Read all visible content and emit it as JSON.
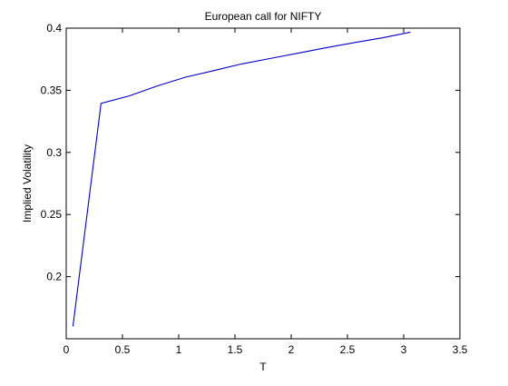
{
  "chart_data": {
    "type": "line",
    "title": "European call for NIFTY",
    "xlabel": "T",
    "ylabel": "Implied Volatility",
    "xlim": [
      0,
      3.5
    ],
    "ylim": [
      0.15,
      0.4
    ],
    "x_ticks": [
      0,
      0.5,
      1,
      1.5,
      2,
      2.5,
      3,
      3.5
    ],
    "x_tick_labels": [
      "0",
      "0.5",
      "1",
      "1.5",
      "2",
      "2.5",
      "3",
      "3.5"
    ],
    "y_ticks": [
      0.2,
      0.25,
      0.3,
      0.35,
      0.4
    ],
    "y_tick_labels": [
      "0.2",
      "0.25",
      "0.3",
      "0.35",
      "0.4"
    ],
    "grid": false,
    "legend": false,
    "series": [
      {
        "color": "#0000cc",
        "x": [
          0.06,
          0.31,
          0.56,
          0.81,
          1.06,
          1.31,
          1.56,
          1.81,
          2.06,
          2.31,
          2.56,
          2.81,
          3.06
        ],
        "y": [
          0.16,
          0.3395,
          0.3455,
          0.3535,
          0.3605,
          0.3658,
          0.3712,
          0.3755,
          0.3798,
          0.3842,
          0.3884,
          0.3922,
          0.3968
        ]
      }
    ]
  }
}
